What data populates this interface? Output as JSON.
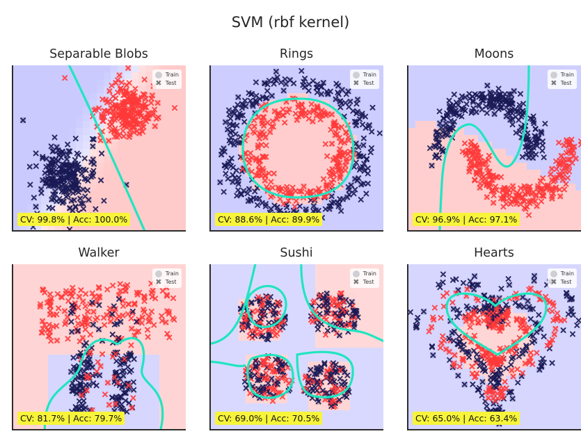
{
  "figure": {
    "title": "SVM (rbf kernel)"
  },
  "legend": {
    "train": "Train",
    "test": "Test"
  },
  "colors": {
    "class0": "#1a1a55",
    "class1": "#ff3a3a",
    "boundary": "#20e5c0",
    "bg0": "#7b7bff",
    "bg1": "#ff7b7b",
    "metric_bg": "#f7f43a"
  },
  "chart_data": [
    {
      "type": "scatter",
      "dataset": "blobs",
      "title": "Separable Blobs",
      "metric": "CV: 99.8% | Acc: 100.0%",
      "cv": 99.8,
      "acc": 100.0
    },
    {
      "type": "scatter",
      "dataset": "rings",
      "title": "Rings",
      "metric": "CV: 88.6% | Acc: 89.9%",
      "cv": 88.6,
      "acc": 89.9
    },
    {
      "type": "scatter",
      "dataset": "moons",
      "title": "Moons",
      "metric": "CV: 96.9% | Acc: 97.1%",
      "cv": 96.9,
      "acc": 97.1
    },
    {
      "type": "scatter",
      "dataset": "walker",
      "title": "Walker",
      "metric": "CV: 81.7% | Acc: 79.7%",
      "cv": 81.7,
      "acc": 79.7
    },
    {
      "type": "scatter",
      "dataset": "sushi",
      "title": "Sushi",
      "metric": "CV: 69.0% | Acc: 70.5%",
      "cv": 69.0,
      "acc": 70.5
    },
    {
      "type": "scatter",
      "dataset": "hearts",
      "title": "Hearts",
      "metric": "CV: 65.0% | Acc: 63.4%",
      "cv": 65.0,
      "acc": 63.4
    }
  ]
}
